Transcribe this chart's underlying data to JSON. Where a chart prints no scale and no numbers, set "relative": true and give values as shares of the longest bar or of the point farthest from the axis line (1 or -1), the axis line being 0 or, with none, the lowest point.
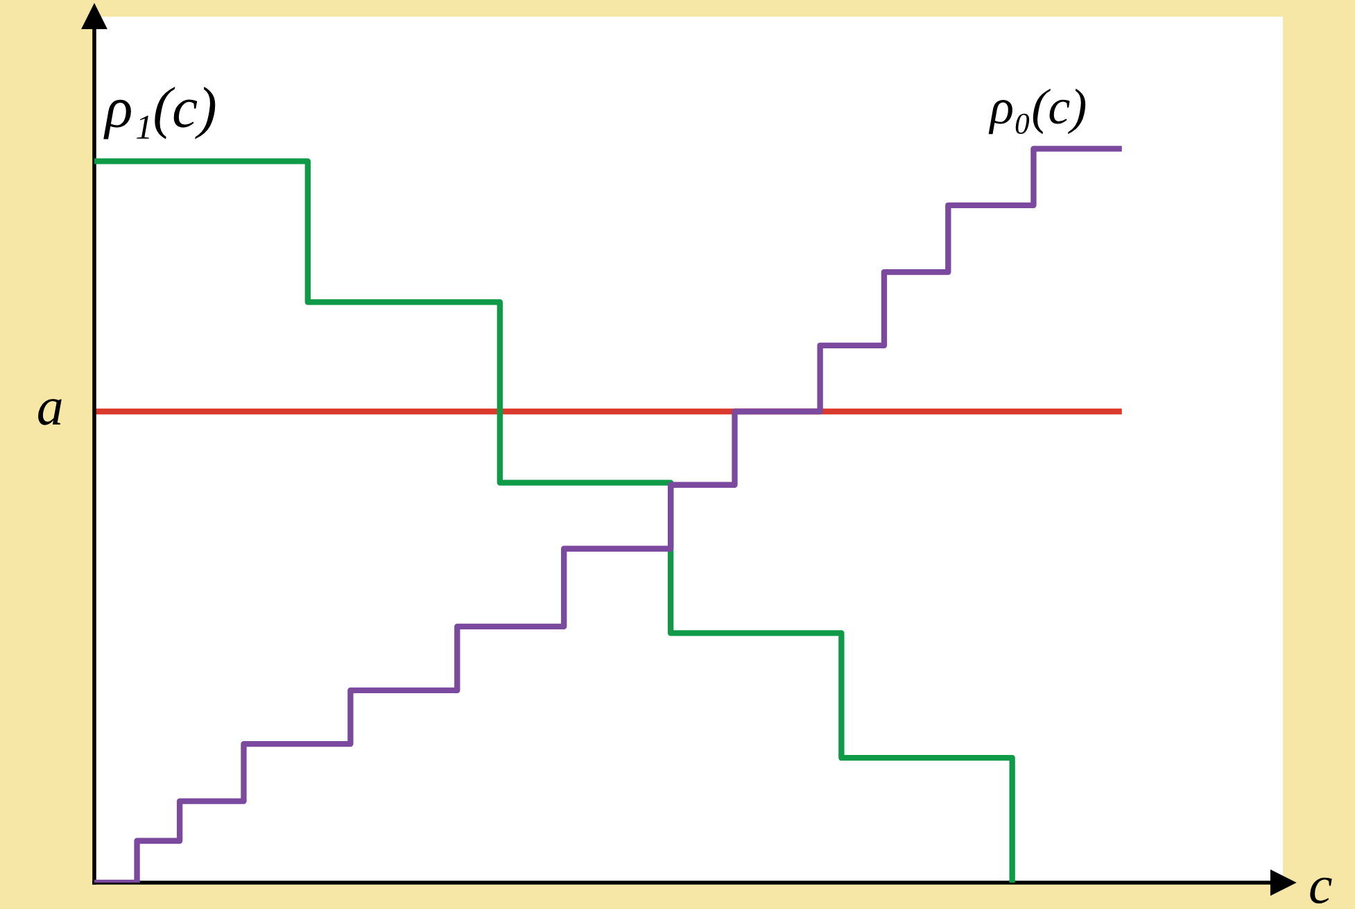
{
  "chart_data": {
    "type": "step",
    "relative": true,
    "xlabel": "c",
    "legend": false,
    "marker": "none",
    "categories": [
      null,
      null,
      null,
      null,
      null,
      null,
      null,
      null,
      null,
      null,
      null,
      null,
      null,
      null,
      null,
      null,
      null,
      null,
      null,
      null,
      null,
      null,
      null,
      null,
      null,
      null,
      null,
      null,
      null,
      null,
      null,
      null,
      null,
      null,
      null,
      null,
      null,
      null,
      null,
      null,
      null,
      null,
      null,
      null,
      null,
      null,
      null,
      null,
      null
    ],
    "series": [
      {
        "name": "ρ₁(c)",
        "color": "#0f9a48",
        "values": [
          0.983,
          0.983,
          0.983,
          0.983,
          0.983,
          0.983,
          0.983,
          0.983,
          0.983,
          0.983,
          0.791,
          0.791,
          0.791,
          0.791,
          0.791,
          0.791,
          0.791,
          0.791,
          0.791,
          0.545,
          0.545,
          0.545,
          0.545,
          0.545,
          0.545,
          0.545,
          0.545,
          0.34,
          0.34,
          0.34,
          0.34,
          0.34,
          0.34,
          0.34,
          0.34,
          0.17,
          0.17,
          0.17,
          0.17,
          0.17,
          0.17,
          0.17,
          0.17,
          0,
          null,
          null,
          null,
          null,
          null
        ]
      },
      {
        "name": "ρ₀(c)",
        "color": "#7b4a9e",
        "values": [
          0,
          0,
          0.057,
          0.057,
          0.111,
          0.111,
          0.111,
          0.189,
          0.189,
          0.189,
          0.189,
          0.189,
          0.262,
          0.262,
          0.262,
          0.262,
          0.262,
          0.349,
          0.349,
          0.349,
          0.349,
          0.349,
          0.455,
          0.455,
          0.455,
          0.455,
          0.455,
          0.542,
          0.542,
          0.542,
          0.642,
          0.642,
          0.642,
          0.642,
          0.732,
          0.732,
          0.732,
          0.832,
          0.832,
          0.832,
          0.923,
          0.923,
          0.923,
          0.923,
          1.0,
          1.0,
          1.0,
          1.0,
          1.0
        ]
      },
      {
        "name": "a",
        "type": "line",
        "color": "#d93a2b",
        "values": [
          0.642,
          0.642,
          0.642,
          0.642,
          0.642,
          0.642,
          0.642,
          0.642,
          0.642,
          0.642,
          0.642,
          0.642,
          0.642,
          0.642,
          0.642,
          0.642,
          0.642,
          0.642,
          0.642,
          0.642,
          0.642,
          0.642,
          0.642,
          0.642,
          0.642,
          0.642,
          0.642,
          0.642,
          0.642,
          0.642,
          0.642,
          0.642,
          0.642,
          0.642,
          0.642,
          0.642,
          0.642,
          0.642,
          0.642,
          0.642,
          0.642,
          0.642,
          0.642,
          0.642,
          0.642,
          0.642,
          0.642,
          0.642,
          0.642
        ]
      }
    ]
  }
}
